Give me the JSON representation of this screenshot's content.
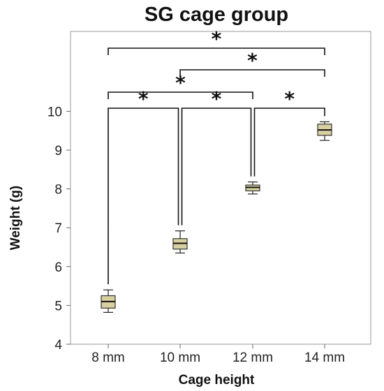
{
  "chart_data": {
    "type": "box",
    "title": "SG cage group",
    "xlabel": "Cage height",
    "ylabel": "Weight (g)",
    "categories": [
      "8 mm",
      "10 mm",
      "12 mm",
      "14 mm"
    ],
    "ylim": [
      4,
      11.2
    ],
    "yticks": [
      4,
      5,
      6,
      7,
      8,
      9,
      10
    ],
    "box_color": "#d8d0a0",
    "boxes": [
      {
        "category": "8 mm",
        "min": 4.82,
        "q1": 4.93,
        "median": 5.1,
        "q3": 5.25,
        "max": 5.4
      },
      {
        "category": "10 mm",
        "min": 6.35,
        "q1": 6.45,
        "median": 6.6,
        "q3": 6.72,
        "max": 6.92
      },
      {
        "category": "12 mm",
        "min": 7.87,
        "q1": 7.95,
        "median": 8.04,
        "q3": 8.1,
        "max": 8.18
      },
      {
        "category": "14 mm",
        "min": 9.25,
        "q1": 9.38,
        "median": 9.52,
        "q3": 9.67,
        "max": 9.73
      }
    ],
    "significance": [
      {
        "from": "8 mm",
        "to": "10 mm",
        "label": "*"
      },
      {
        "from": "10 mm",
        "to": "12 mm",
        "label": "*"
      },
      {
        "from": "12 mm",
        "to": "14 mm",
        "label": "*"
      },
      {
        "from": "8 mm",
        "to": "12 mm",
        "label": "*"
      },
      {
        "from": "10 mm",
        "to": "14 mm",
        "label": "*"
      },
      {
        "from": "8 mm",
        "to": "14 mm",
        "label": "*"
      }
    ]
  }
}
